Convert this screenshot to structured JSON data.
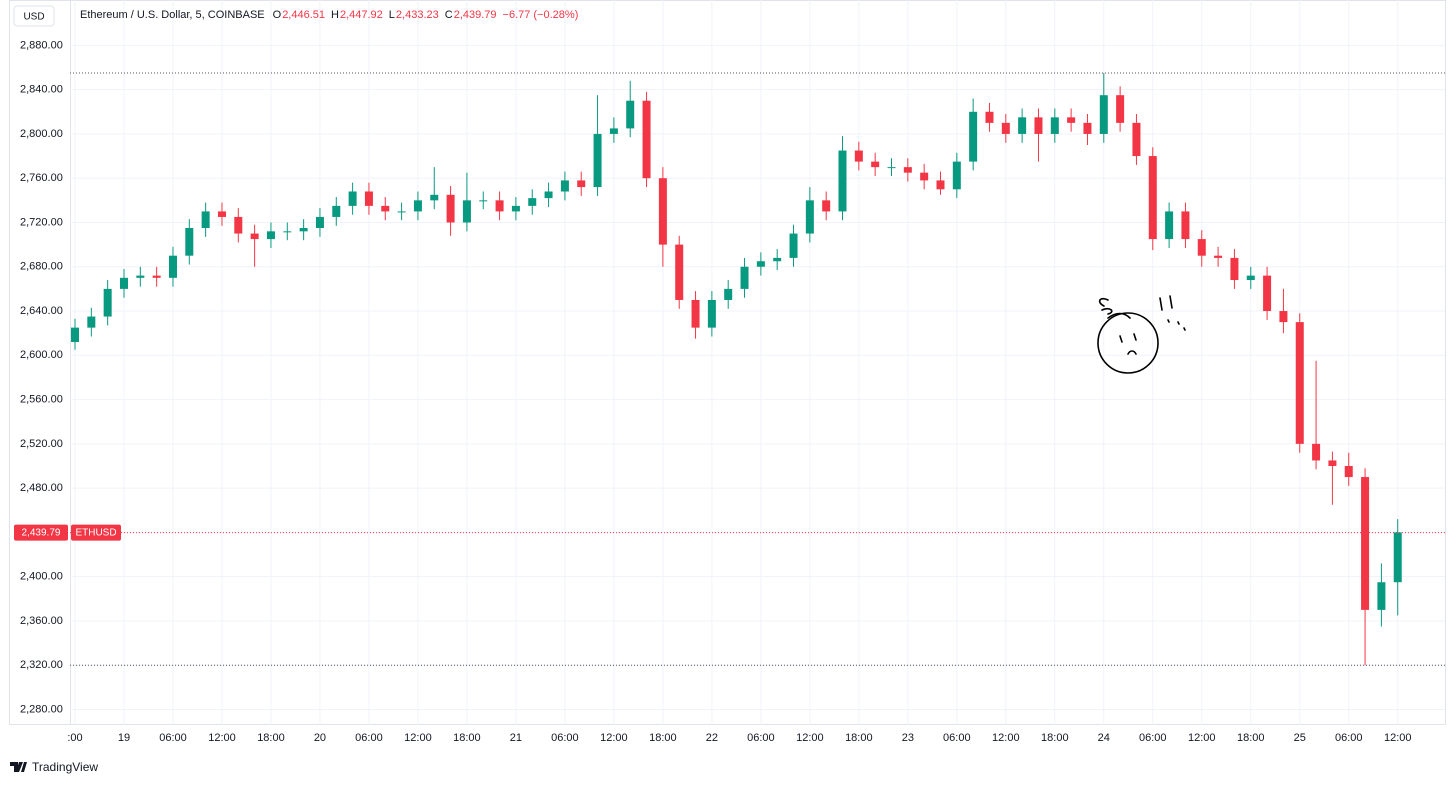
{
  "chart_data": {
    "type": "candlestick",
    "currency": "USD",
    "title": "Ethereum / U.S. Dollar, 5, COINBASE",
    "ohlc_legend": [
      {
        "key": "O",
        "value": "2,446.51"
      },
      {
        "key": "H",
        "value": "2,447.92"
      },
      {
        "key": "L",
        "value": "2,433.23"
      },
      {
        "key": "C",
        "value": "2,439.79"
      }
    ],
    "change": "−6.77 (−0.28%)",
    "symbol": "ETHUSD",
    "last_price": {
      "value": 2439.79,
      "label": "2,439.79"
    },
    "range_lines": [
      2855,
      2320
    ],
    "brand": "TradingView",
    "up_color": "#089981",
    "down_color": "#f23645",
    "grid": true,
    "categories": [
      ":00",
      null,
      null,
      "19",
      null,
      null,
      "06:00",
      null,
      null,
      "12:00",
      null,
      null,
      "18:00",
      null,
      null,
      "20",
      null,
      null,
      "06:00",
      null,
      null,
      "12:00",
      null,
      null,
      "18:00",
      null,
      null,
      "21",
      null,
      null,
      "06:00",
      null,
      null,
      "12:00",
      null,
      null,
      "18:00",
      null,
      null,
      "22",
      null,
      null,
      "06:00",
      null,
      null,
      "12:00",
      null,
      null,
      "18:00",
      null,
      null,
      "23",
      null,
      null,
      "06:00",
      null,
      null,
      "12:00",
      null,
      null,
      "18:00",
      null,
      null,
      "24",
      null,
      null,
      "06:00",
      null,
      null,
      "12:00",
      null,
      null,
      "18:00",
      null,
      null,
      "25",
      null,
      null,
      "06:00",
      null,
      null,
      "12:00"
    ],
    "open": [
      2612,
      2625,
      2635,
      2660,
      2670,
      2672,
      2670,
      2690,
      2715,
      2730,
      2725,
      2710,
      2705,
      2712,
      2712,
      2715,
      2725,
      2735,
      2748,
      2735,
      2730,
      2730,
      2740,
      2745,
      2720,
      2740,
      2740,
      2730,
      2735,
      2742,
      2748,
      2758,
      2752,
      2800,
      2805,
      2830,
      2760,
      2700,
      2650,
      2625,
      2650,
      2660,
      2680,
      2685,
      2688,
      2710,
      2740,
      2730,
      2785,
      2775,
      2770,
      2770,
      2765,
      2758,
      2750,
      2775,
      2820,
      2810,
      2800,
      2815,
      2800,
      2815,
      2810,
      2800,
      2835,
      2810,
      2780,
      2705,
      2730,
      2705,
      2690,
      2688,
      2668,
      2672,
      2640,
      2630,
      2520,
      2505,
      2500,
      2490,
      2370,
      2395
    ],
    "high": [
      2633,
      2643,
      2668,
      2678,
      2680,
      2680,
      2698,
      2723,
      2738,
      2738,
      2733,
      2718,
      2720,
      2720,
      2723,
      2733,
      2743,
      2756,
      2756,
      2743,
      2738,
      2748,
      2770,
      2753,
      2765,
      2748,
      2748,
      2743,
      2750,
      2756,
      2766,
      2766,
      2835,
      2815,
      2848,
      2838,
      2770,
      2708,
      2658,
      2658,
      2668,
      2688,
      2693,
      2696,
      2718,
      2752,
      2748,
      2798,
      2793,
      2783,
      2778,
      2778,
      2773,
      2766,
      2783,
      2832,
      2828,
      2818,
      2823,
      2823,
      2823,
      2823,
      2818,
      2855,
      2843,
      2818,
      2788,
      2738,
      2738,
      2713,
      2698,
      2696,
      2680,
      2680,
      2660,
      2638,
      2595,
      2513,
      2512,
      2498,
      2412,
      2452
    ],
    "low": [
      2605,
      2617,
      2627,
      2652,
      2662,
      2662,
      2662,
      2682,
      2707,
      2717,
      2702,
      2680,
      2697,
      2704,
      2704,
      2707,
      2717,
      2727,
      2727,
      2722,
      2722,
      2722,
      2732,
      2708,
      2712,
      2732,
      2722,
      2722,
      2727,
      2734,
      2740,
      2744,
      2744,
      2792,
      2797,
      2752,
      2680,
      2642,
      2615,
      2617,
      2642,
      2652,
      2672,
      2677,
      2680,
      2702,
      2722,
      2722,
      2767,
      2762,
      2762,
      2757,
      2750,
      2745,
      2742,
      2767,
      2802,
      2792,
      2792,
      2775,
      2792,
      2802,
      2790,
      2792,
      2802,
      2772,
      2695,
      2697,
      2697,
      2680,
      2680,
      2660,
      2660,
      2632,
      2620,
      2512,
      2497,
      2465,
      2482,
      2320,
      2355,
      2365
    ],
    "close": [
      2625,
      2635,
      2660,
      2670,
      2672,
      2670,
      2690,
      2715,
      2730,
      2725,
      2710,
      2705,
      2712,
      2712,
      2715,
      2725,
      2735,
      2748,
      2735,
      2730,
      2730,
      2740,
      2745,
      2720,
      2740,
      2740,
      2730,
      2735,
      2742,
      2748,
      2758,
      2752,
      2800,
      2805,
      2830,
      2760,
      2700,
      2650,
      2625,
      2650,
      2660,
      2680,
      2685,
      2688,
      2710,
      2740,
      2730,
      2785,
      2775,
      2770,
      2770,
      2765,
      2758,
      2750,
      2775,
      2820,
      2810,
      2800,
      2815,
      2800,
      2815,
      2810,
      2800,
      2835,
      2810,
      2780,
      2705,
      2730,
      2705,
      2690,
      2688,
      2668,
      2672,
      2640,
      2630,
      2520,
      2505,
      2500,
      2490,
      2370,
      2395,
      2440
    ],
    "ylim": [
      2266,
      2921
    ],
    "yticks": [
      {
        "value": 2280,
        "label": "2,280.00"
      },
      {
        "value": 2320,
        "label": "2,320.00"
      },
      {
        "value": 2360,
        "label": "2,360.00"
      },
      {
        "value": 2400,
        "label": "2,400.00"
      },
      {
        "value": 2440,
        "label": "2,440.00"
      },
      {
        "value": 2480,
        "label": "2,480.00"
      },
      {
        "value": 2520,
        "label": "2,520.00"
      },
      {
        "value": 2560,
        "label": "2,560.00"
      },
      {
        "value": 2600,
        "label": "2,600.00"
      },
      {
        "value": 2640,
        "label": "2,640.00"
      },
      {
        "value": 2680,
        "label": "2,680.00"
      },
      {
        "value": 2720,
        "label": "2,720.00"
      },
      {
        "value": 2760,
        "label": "2,760.00"
      },
      {
        "value": 2800,
        "label": "2,800.00"
      },
      {
        "value": 2840,
        "label": "2,840.00"
      },
      {
        "value": 2880,
        "label": "2,880.00"
      }
    ]
  }
}
